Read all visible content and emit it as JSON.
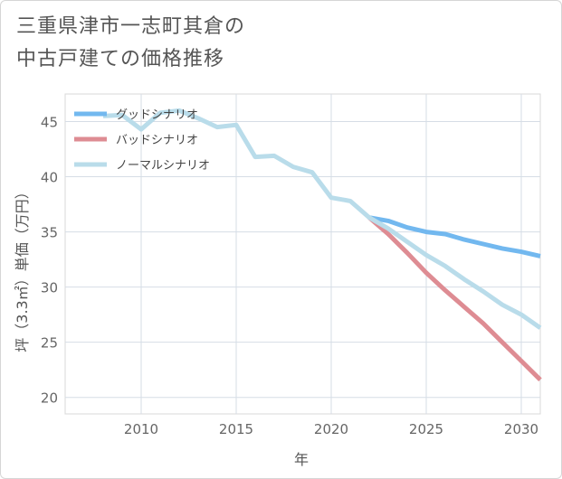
{
  "title_lines": [
    "三重県津市一志町其倉の",
    "中古戸建ての価格推移"
  ],
  "chart_data": {
    "type": "line",
    "title": "三重県津市一志町其倉の中古戸建ての価格推移",
    "xlabel": "年",
    "ylabel": "坪（3.3㎡）単価（万円）",
    "xlim": [
      2006,
      2031
    ],
    "ylim": [
      18.5,
      47.5
    ],
    "xticks": [
      2010,
      2015,
      2020,
      2025,
      2030
    ],
    "yticks": [
      20,
      25,
      30,
      35,
      40,
      45
    ],
    "grid": true,
    "legend_position": "top-left",
    "series": [
      {
        "name": "グッドシナリオ",
        "color": "#72b8ef",
        "x": [
          2022,
          2023,
          2024,
          2025,
          2026,
          2027,
          2028,
          2029,
          2030,
          2031
        ],
        "values": [
          36.3,
          36.0,
          35.4,
          35.0,
          34.8,
          34.3,
          33.9,
          33.5,
          33.2,
          32.8
        ]
      },
      {
        "name": "バッドシナリオ",
        "color": "#de8c93",
        "x": [
          2022,
          2023,
          2024,
          2025,
          2026,
          2027,
          2028,
          2029,
          2030,
          2031
        ],
        "values": [
          36.3,
          34.8,
          33.1,
          31.3,
          29.7,
          28.2,
          26.7,
          25.0,
          23.3,
          21.6
        ]
      },
      {
        "name": "ノーマルシナリオ",
        "color": "#b9dcea",
        "x": [
          2008,
          2009,
          2010,
          2011,
          2012,
          2013,
          2014,
          2015,
          2016,
          2017,
          2018,
          2019,
          2020,
          2021,
          2022,
          2023,
          2024,
          2025,
          2026,
          2027,
          2028,
          2029,
          2030,
          2031
        ],
        "values": [
          45.5,
          45.6,
          44.3,
          45.8,
          46.0,
          45.3,
          44.5,
          44.7,
          41.8,
          41.9,
          40.9,
          40.4,
          38.1,
          37.8,
          36.3,
          35.3,
          34.1,
          32.9,
          31.9,
          30.7,
          29.6,
          28.4,
          27.5,
          26.3
        ]
      }
    ]
  }
}
